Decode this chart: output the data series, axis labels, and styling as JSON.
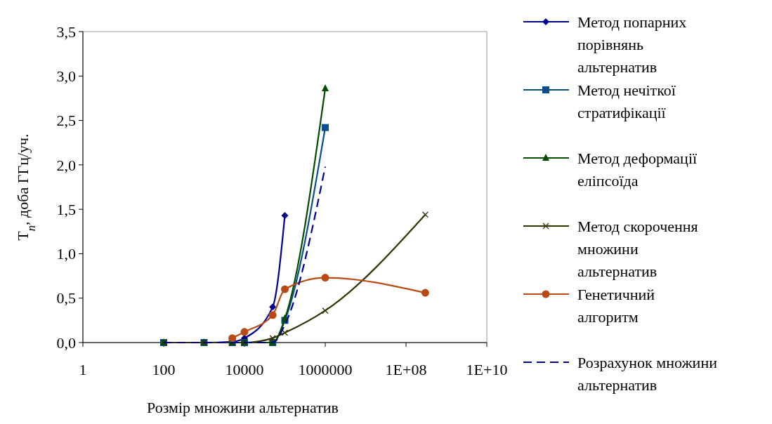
{
  "chart_data": {
    "type": "line",
    "xlabel": "Розмір множини альтернатив",
    "ylabel": "T$_{n}$, доба ГГц/уч.",
    "log": "x",
    "xlim": [
      1,
      10000000000
    ],
    "xticks": [
      1,
      100,
      10000,
      1000000,
      {
        "value": 100000000,
        "label": "1E+08"
      },
      {
        "value": 10000000000,
        "label": "1E+10"
      }
    ],
    "ylim": [
      0,
      3.5
    ],
    "yticks": [
      {
        "value": 0,
        "label": "0,0"
      },
      {
        "value": 0.5,
        "label": "0,5"
      },
      {
        "value": 1,
        "label": "1,0"
      },
      {
        "value": 1.5,
        "label": "1,5"
      },
      {
        "value": 2,
        "label": "2,0"
      },
      {
        "value": 2.5,
        "label": "2,5"
      },
      {
        "value": 3,
        "label": "3,0"
      },
      {
        "value": 3.5,
        "label": "3,5"
      }
    ],
    "grid": false,
    "legend": "right",
    "series": [
      {
        "name": "Метод попарних порівнянь альтернатив",
        "color": "#00008b",
        "marker": "diamond",
        "x": [
          100,
          1000,
          5000,
          10000,
          50000,
          100000
        ],
        "values": [
          0,
          0,
          0.01,
          0.05,
          0.4,
          1.43
        ]
      },
      {
        "name": "Метод нечіткої стратифікації",
        "color": "#0b4f8a",
        "marker": "square",
        "x": [
          100,
          1000,
          5000,
          10000,
          50000,
          100000,
          1000000
        ],
        "values": [
          0,
          0,
          0,
          0,
          0,
          0.25,
          2.42
        ]
      },
      {
        "name": "Метод деформації еліпсоїда",
        "color": "#004d00",
        "marker": "triangle",
        "x": [
          100,
          1000,
          5000,
          10000,
          50000,
          100000,
          1000000
        ],
        "values": [
          0,
          0,
          0,
          0,
          0,
          0.27,
          2.86
        ]
      },
      {
        "name": "Метод скорочення множини альтернатив",
        "color": "#333300",
        "marker": "cross",
        "x": [
          100,
          1000,
          5000,
          10000,
          50000,
          100000,
          1000000,
          300000000
        ],
        "values": [
          0,
          0,
          0,
          0,
          0.05,
          0.11,
          0.36,
          1.44
        ]
      },
      {
        "name": "Генетичний алгоритм",
        "color": "#b84a14",
        "marker": "circle",
        "x": [
          5000,
          10000,
          50000,
          100000,
          1000000,
          300000000
        ],
        "values": [
          0.05,
          0.12,
          0.31,
          0.6,
          0.73,
          0.56
        ]
      },
      {
        "name": "Розрахунок множини альтернатив",
        "color": "#000099",
        "marker": "none",
        "line_style": "dashed",
        "x": [
          100,
          1000,
          5000,
          10000,
          50000,
          100000,
          1000000
        ],
        "values": [
          0,
          0,
          0,
          0,
          0,
          0.2,
          1.98
        ]
      }
    ]
  }
}
